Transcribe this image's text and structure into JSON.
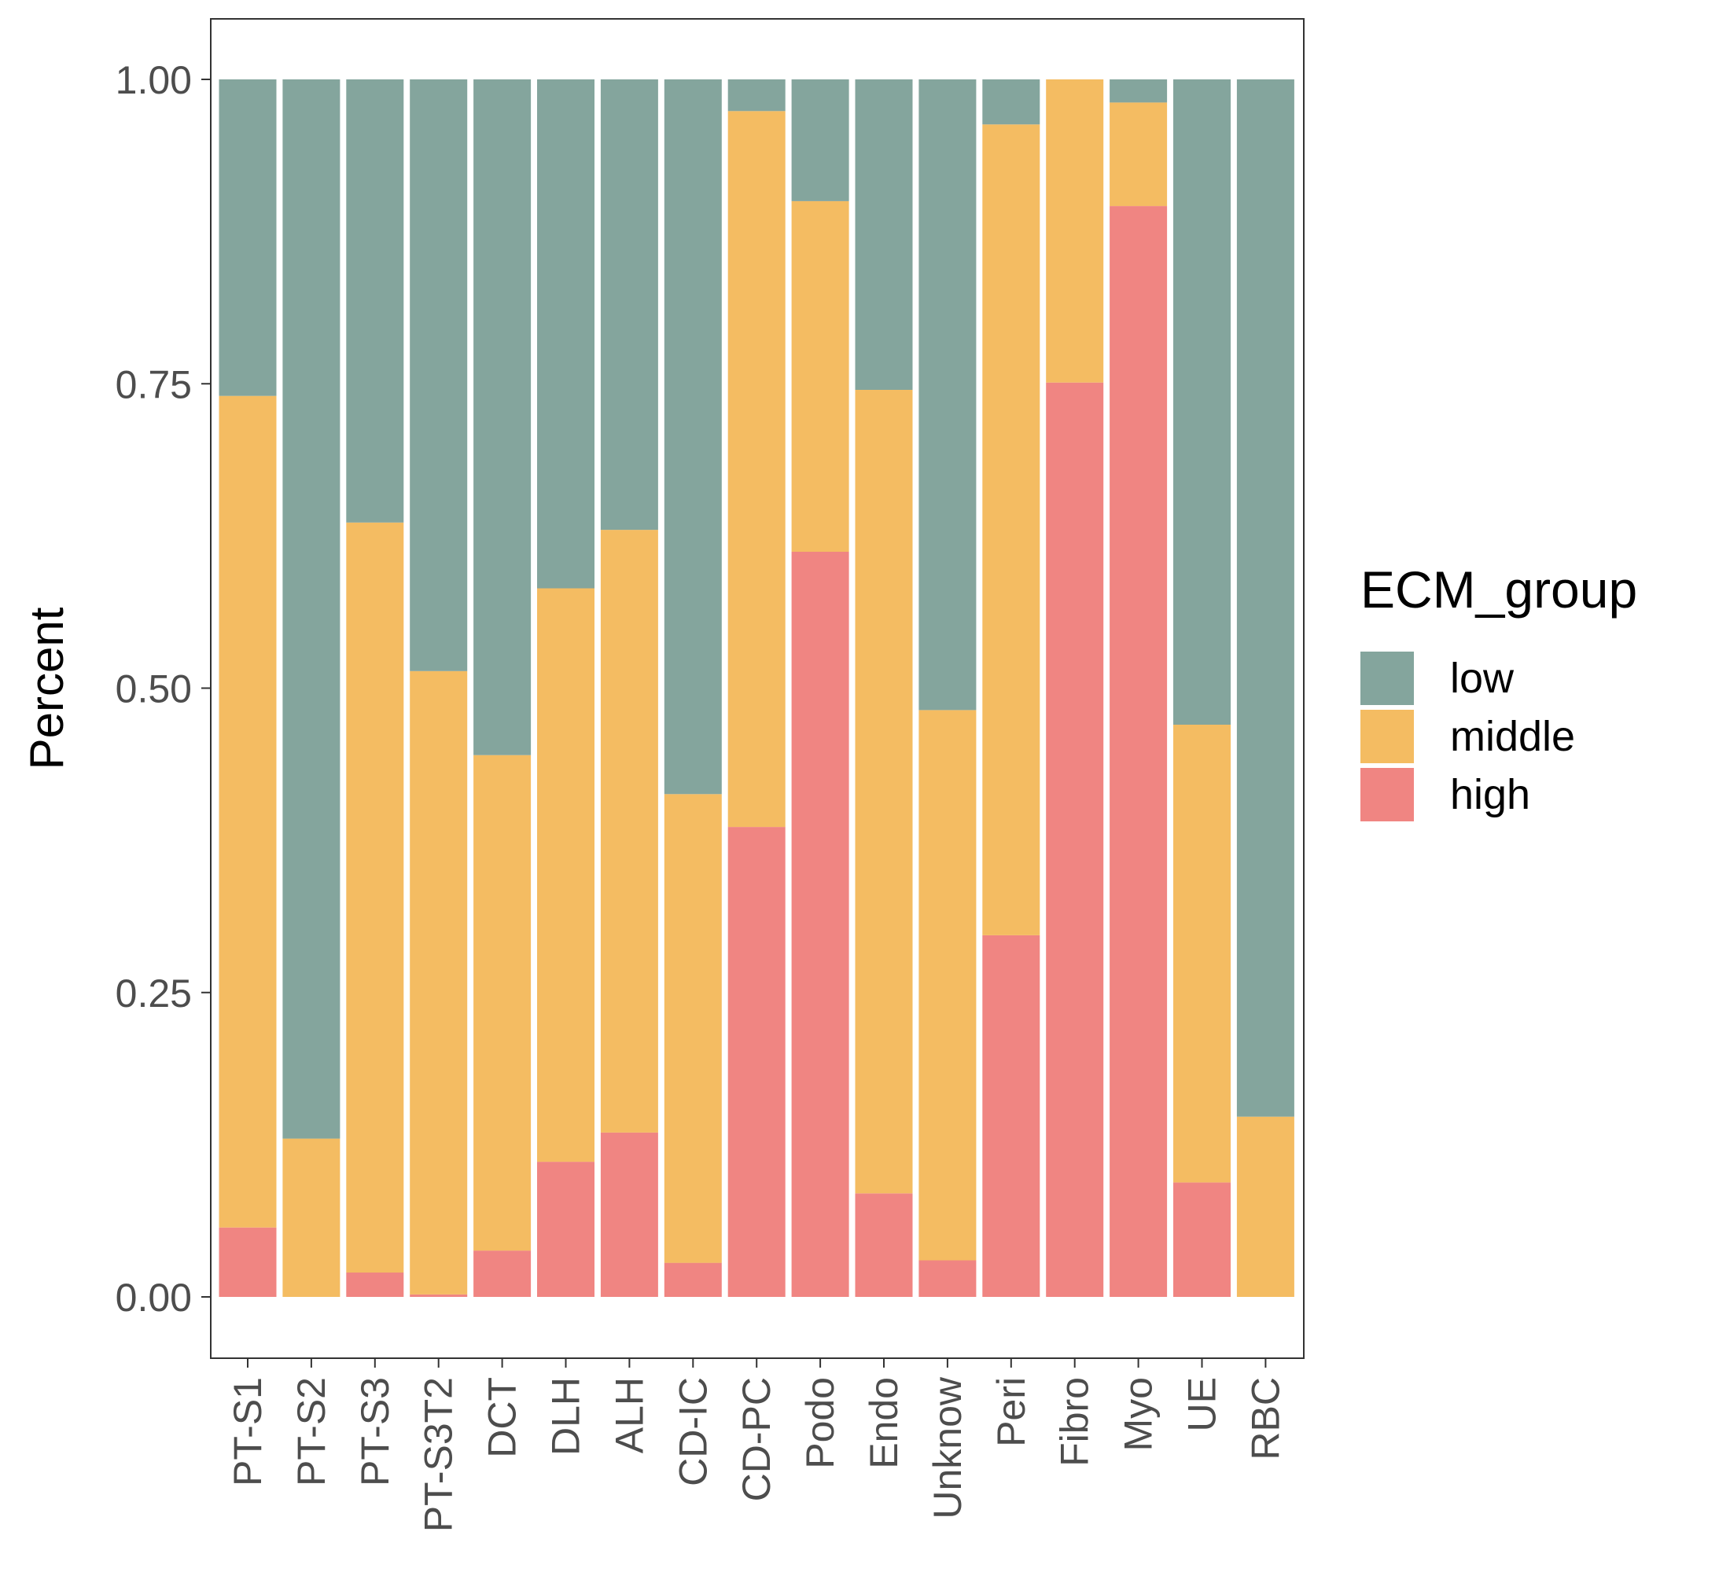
{
  "chart_data": {
    "type": "bar",
    "stacked": true,
    "title": "",
    "xlabel": "",
    "ylabel": "Percent",
    "ylim": [
      0,
      1
    ],
    "yticks": [
      "0.00",
      "0.25",
      "0.50",
      "0.75",
      "1.00"
    ],
    "grid": false,
    "legend_position": "right",
    "legend_title": "ECM_group",
    "categories": [
      "PT-S1",
      "PT-S2",
      "PT-S3",
      "PT-S3T2",
      "DCT",
      "DLH",
      "ALH",
      "CD-IC",
      "CD-PC",
      "Podo",
      "Endo",
      "Unknow",
      "Peri",
      "Fibro",
      "Myo",
      "UE",
      "RBC"
    ],
    "series": [
      {
        "name": "high",
        "color": "#f08582",
        "values": [
          0.057,
          0.0,
          0.02,
          0.002,
          0.038,
          0.111,
          0.135,
          0.028,
          0.386,
          0.612,
          0.085,
          0.03,
          0.297,
          0.751,
          0.896,
          0.094,
          0.0
        ]
      },
      {
        "name": "middle",
        "color": "#f4bc62",
        "values": [
          0.683,
          0.13,
          0.616,
          0.512,
          0.407,
          0.471,
          0.495,
          0.385,
          0.588,
          0.288,
          0.66,
          0.452,
          0.666,
          0.249,
          0.085,
          0.376,
          0.148
        ]
      },
      {
        "name": "low",
        "color": "#84a59d",
        "values": [
          0.26,
          0.87,
          0.364,
          0.486,
          0.555,
          0.418,
          0.37,
          0.587,
          0.026,
          0.1,
          0.255,
          0.518,
          0.037,
          0.0,
          0.019,
          0.53,
          0.852
        ]
      }
    ],
    "legend_order": [
      "low",
      "middle",
      "high"
    ]
  }
}
